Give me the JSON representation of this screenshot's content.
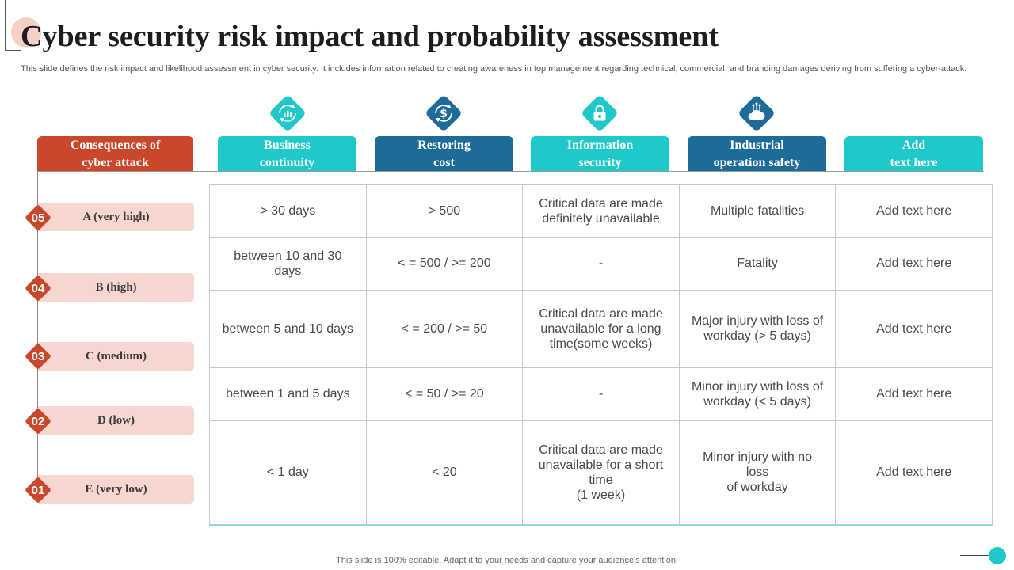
{
  "title": "Cyber security risk impact and probability assessment",
  "subtitle": "This slide defines the risk impact and likelihood assessment in cyber security. It includes information related to creating awareness in top management regarding technical, commercial, and branding damages deriving from suffering a cyber-attack.",
  "headers": [
    {
      "label": "Consequences of\ncyber attack",
      "color": "#c9472b"
    },
    {
      "label": "Business\ncontinuity",
      "color": "#1fc9c9",
      "icon": "chart-cycle-icon"
    },
    {
      "label": "Restoring\ncost",
      "color": "#1d6b99",
      "icon": "dollar-cycle-icon"
    },
    {
      "label": "Information\nsecurity",
      "color": "#1fc9c9",
      "icon": "lock-shield-icon"
    },
    {
      "label": "Industrial\noperation safety",
      "color": "#1d6b99",
      "icon": "cloud-network-icon"
    },
    {
      "label": "Add\ntext here",
      "color": "#1fc9c9"
    }
  ],
  "rows": [
    {
      "num": "05",
      "label": "A (very high)",
      "cells": [
        "> 30 days",
        "> 500",
        "Critical data are made\ndefinitely unavailable",
        "Multiple fatalities",
        "Add text here"
      ]
    },
    {
      "num": "04",
      "label": "B (high)",
      "cells": [
        "between 10 and 30 days",
        "< = 500 / >= 200",
        "-",
        "Fatality",
        "Add text here"
      ]
    },
    {
      "num": "03",
      "label": "C (medium)",
      "cells": [
        "between 5 and 10 days",
        "< = 200 / >= 50",
        "Critical data are made\nunavailable for a long\ntime(some weeks)",
        "Major injury  with loss of\nworkday (> 5 days)",
        "Add text here"
      ]
    },
    {
      "num": "02",
      "label": "D (low)",
      "cells": [
        "between 1 and 5 days",
        "< = 50 / >= 20",
        "-",
        "Minor injury  with loss of\nworkday (< 5 days)",
        "Add text here"
      ]
    },
    {
      "num": "01",
      "label": "E (very low)",
      "cells": [
        "< 1 day",
        "<  20",
        "Critical data are made\nunavailable for a short\ntime\n(1 week)",
        "Minor injury  with no loss\nof workday",
        "Add text here"
      ]
    }
  ],
  "footer": "This slide is 100% editable. Adapt it to your needs and capture your audience's attention."
}
